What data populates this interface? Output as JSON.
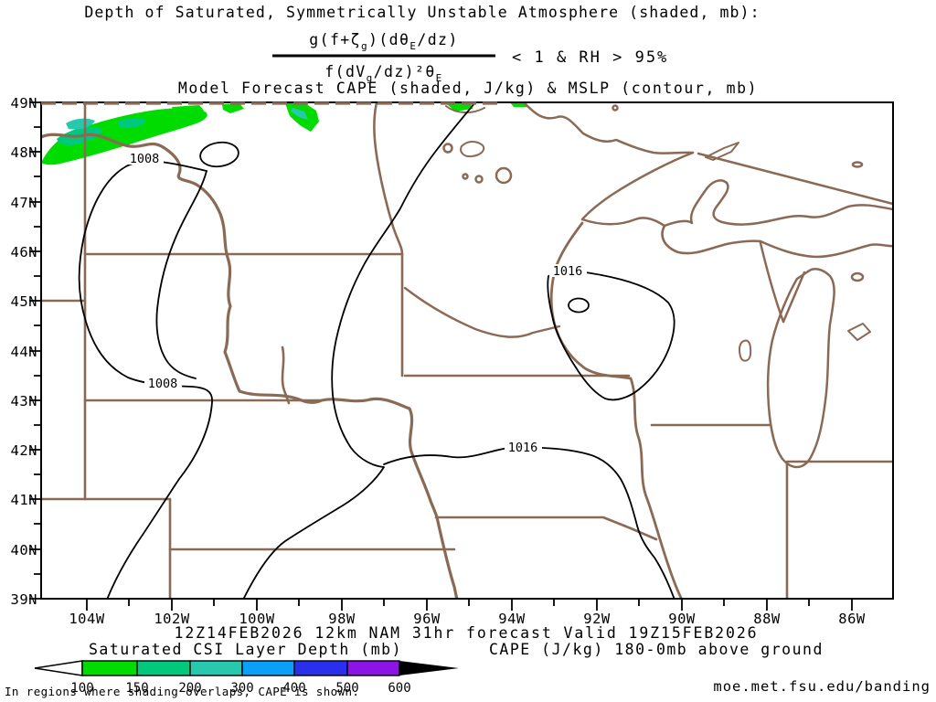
{
  "header": {
    "title": "Depth of Saturated, Symmetrically Unstable Atmosphere (shaded, mb):",
    "formula": {
      "numerator": [
        {
          "t": "g(f+ζ"
        },
        {
          "t": "g",
          "sub": true
        },
        {
          "t": ")(dθ"
        },
        {
          "t": "E",
          "sub": true
        },
        {
          "t": "/dz)"
        }
      ],
      "denominator": [
        {
          "t": "f(dV"
        },
        {
          "t": "g",
          "sub": true
        },
        {
          "t": "/dz)²θ"
        },
        {
          "t": "E",
          "sub": true
        }
      ],
      "condition": "< 1 & RH > 95%"
    },
    "subtitle": "Model Forecast CAPE (shaded, J/kg) & MSLP (contour, mb)"
  },
  "map": {
    "lat_labels": [
      "49N",
      "48N",
      "47N",
      "46N",
      "45N",
      "44N",
      "43N",
      "42N",
      "41N",
      "40N",
      "39N"
    ],
    "lon_labels": [
      "104W",
      "102W",
      "100W",
      "98W",
      "96W",
      "94W",
      "92W",
      "90W",
      "88W",
      "86W"
    ],
    "contour_labels": [
      {
        "text": "1008"
      },
      {
        "text": "1008"
      },
      {
        "text": "1016"
      },
      {
        "text": "1016"
      }
    ],
    "contour_values_mb": [
      1008,
      1016
    ]
  },
  "footer": {
    "valid_line": "12Z14FEB2026 12km NAM 31hr forecast Valid 19Z15FEB2026",
    "legend_left_title": "Saturated CSI Layer Depth (mb)",
    "legend_right_title": "CAPE (J/kg) 180-0mb above ground",
    "note": "In regions where shading overlaps, CAPE is shown.",
    "url": "moe.met.fsu.edu/banding"
  },
  "colorbar": {
    "ticks": [
      "100",
      "150",
      "200",
      "300",
      "400",
      "500",
      "600"
    ],
    "colors": [
      "#00DC00",
      "#00C87D",
      "#28C8AF",
      "#0AA0FA",
      "#2830EE",
      "#8C14E6"
    ]
  },
  "colors": {
    "map_outline": "#8B6A55",
    "contour_black": "#000000",
    "highlight_red": "#F25050",
    "url_blue": "#5560E0",
    "shade_green": "#00DC00",
    "shade_teal": "#00C87D",
    "shade_turquoise": "#28C8AF"
  }
}
